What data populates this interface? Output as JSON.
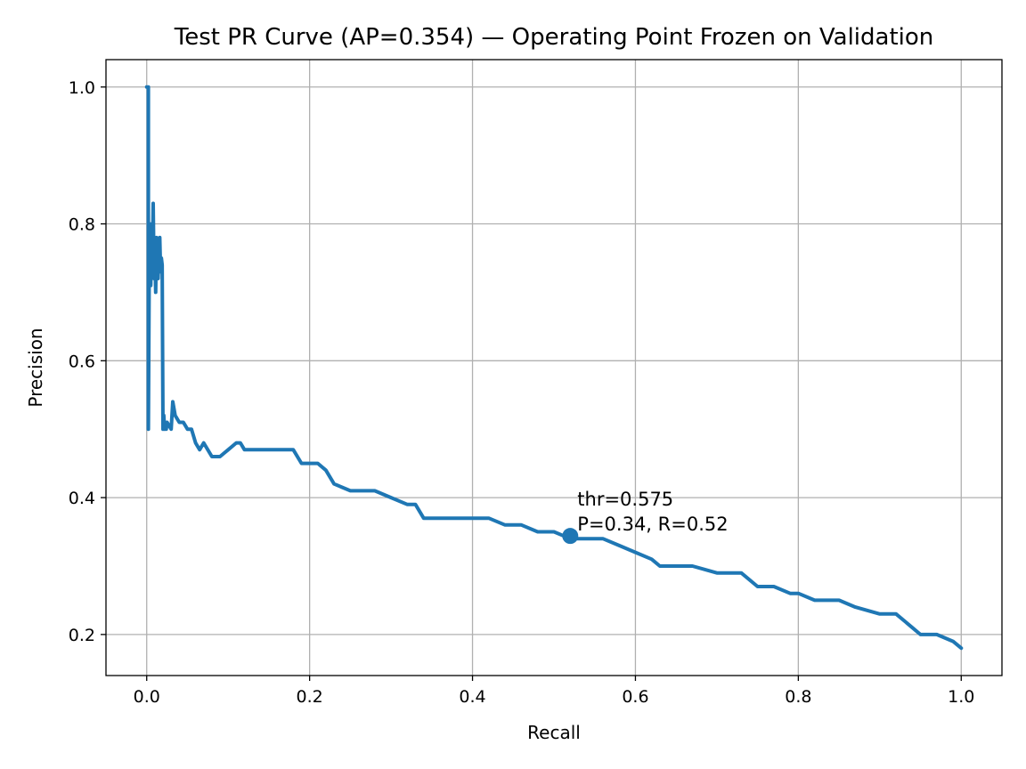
{
  "chart_data": {
    "type": "line",
    "title": "Test PR Curve (AP=0.354) — Operating Point Frozen on Validation",
    "xlabel": "Recall",
    "ylabel": "Precision",
    "xlim": [
      -0.05,
      1.05
    ],
    "ylim": [
      0.14,
      1.04
    ],
    "grid": true,
    "x_ticks": [
      0.0,
      0.2,
      0.4,
      0.6,
      0.8,
      1.0
    ],
    "x_tick_labels": [
      "0.0",
      "0.2",
      "0.4",
      "0.6",
      "0.8",
      "1.0"
    ],
    "y_ticks": [
      0.2,
      0.4,
      0.6,
      0.8,
      1.0
    ],
    "y_tick_labels": [
      "0.2",
      "0.4",
      "0.6",
      "0.8",
      "1.0"
    ],
    "series": [
      {
        "color": "#1f77b4",
        "x": [
          0.0,
          0.001,
          0.002,
          0.002,
          0.003,
          0.004,
          0.005,
          0.006,
          0.007,
          0.008,
          0.009,
          0.01,
          0.011,
          0.012,
          0.013,
          0.014,
          0.015,
          0.016,
          0.017,
          0.018,
          0.019,
          0.02,
          0.021,
          0.022,
          0.023,
          0.024,
          0.025,
          0.03,
          0.032,
          0.035,
          0.04,
          0.045,
          0.05,
          0.055,
          0.06,
          0.065,
          0.07,
          0.08,
          0.09,
          0.1,
          0.11,
          0.115,
          0.12,
          0.14,
          0.16,
          0.175,
          0.18,
          0.19,
          0.2,
          0.21,
          0.22,
          0.23,
          0.25,
          0.27,
          0.28,
          0.3,
          0.32,
          0.33,
          0.34,
          0.36,
          0.38,
          0.4,
          0.42,
          0.44,
          0.46,
          0.48,
          0.5,
          0.52,
          0.54,
          0.56,
          0.58,
          0.6,
          0.62,
          0.63,
          0.65,
          0.67,
          0.7,
          0.72,
          0.73,
          0.75,
          0.77,
          0.79,
          0.8,
          0.82,
          0.85,
          0.87,
          0.9,
          0.92,
          0.93,
          0.94,
          0.95,
          0.97,
          0.99,
          1.0
        ],
        "y": [
          1.0,
          1.0,
          1.0,
          0.5,
          0.72,
          0.8,
          0.71,
          0.78,
          0.74,
          0.83,
          0.72,
          0.76,
          0.7,
          0.78,
          0.73,
          0.72,
          0.76,
          0.78,
          0.73,
          0.75,
          0.74,
          0.5,
          0.52,
          0.5,
          0.51,
          0.5,
          0.51,
          0.5,
          0.54,
          0.52,
          0.51,
          0.51,
          0.5,
          0.5,
          0.48,
          0.47,
          0.48,
          0.46,
          0.46,
          0.47,
          0.48,
          0.48,
          0.47,
          0.47,
          0.47,
          0.47,
          0.47,
          0.45,
          0.45,
          0.45,
          0.44,
          0.42,
          0.41,
          0.41,
          0.41,
          0.4,
          0.39,
          0.39,
          0.37,
          0.37,
          0.37,
          0.37,
          0.37,
          0.36,
          0.36,
          0.35,
          0.35,
          0.34,
          0.34,
          0.34,
          0.33,
          0.32,
          0.31,
          0.3,
          0.3,
          0.3,
          0.29,
          0.29,
          0.29,
          0.27,
          0.27,
          0.26,
          0.26,
          0.25,
          0.25,
          0.24,
          0.23,
          0.23,
          0.22,
          0.21,
          0.2,
          0.2,
          0.19,
          0.18
        ]
      }
    ],
    "operating_point": {
      "x": 0.52,
      "y": 0.344,
      "color": "#1f77b4",
      "annotation_lines": [
        "thr=0.575",
        "P=0.34, R=0.52"
      ]
    }
  }
}
